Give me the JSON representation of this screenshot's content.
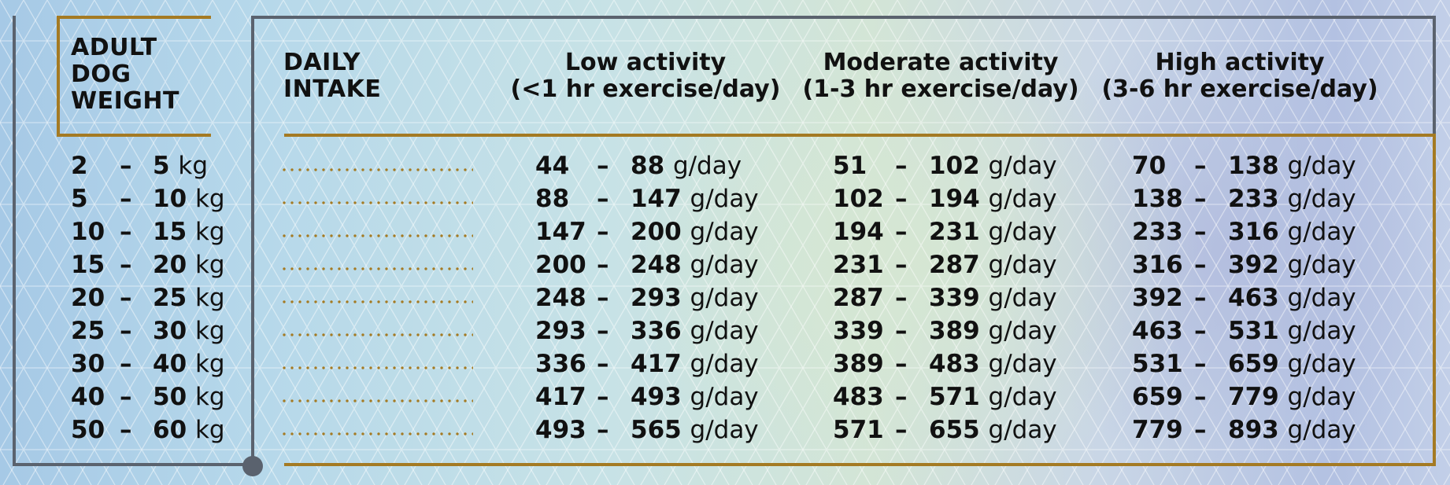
{
  "colors": {
    "frame_gray": "#5a626e",
    "accent_gold": "#a47a23",
    "text": "#111111"
  },
  "headers": {
    "weight": "ADULT\nDOG\nWEIGHT",
    "intake": "DAILY\nINTAKE",
    "low": {
      "title": "Low activity",
      "subtitle": "(<1 hr exercise/day)"
    },
    "moderate": {
      "title": "Moderate activity",
      "subtitle": "(1-3 hr exercise/day)"
    },
    "high": {
      "title": "High activity",
      "subtitle": "(3-6 hr exercise/day)"
    }
  },
  "units": {
    "weight": "kg",
    "intake": "g/day"
  },
  "dash": "–",
  "rows": [
    {
      "weight_min": "2",
      "weight_max": "5",
      "low": [
        "44",
        "88"
      ],
      "moderate": [
        "51",
        "102"
      ],
      "high": [
        "70",
        "138"
      ]
    },
    {
      "weight_min": "5",
      "weight_max": "10",
      "low": [
        "88",
        "147"
      ],
      "moderate": [
        "102",
        "194"
      ],
      "high": [
        "138",
        "233"
      ]
    },
    {
      "weight_min": "10",
      "weight_max": "15",
      "low": [
        "147",
        "200"
      ],
      "moderate": [
        "194",
        "231"
      ],
      "high": [
        "233",
        "316"
      ]
    },
    {
      "weight_min": "15",
      "weight_max": "20",
      "low": [
        "200",
        "248"
      ],
      "moderate": [
        "231",
        "287"
      ],
      "high": [
        "316",
        "392"
      ]
    },
    {
      "weight_min": "20",
      "weight_max": "25",
      "low": [
        "248",
        "293"
      ],
      "moderate": [
        "287",
        "339"
      ],
      "high": [
        "392",
        "463"
      ]
    },
    {
      "weight_min": "25",
      "weight_max": "30",
      "low": [
        "293",
        "336"
      ],
      "moderate": [
        "339",
        "389"
      ],
      "high": [
        "463",
        "531"
      ]
    },
    {
      "weight_min": "30",
      "weight_max": "40",
      "low": [
        "336",
        "417"
      ],
      "moderate": [
        "389",
        "483"
      ],
      "high": [
        "531",
        "659"
      ]
    },
    {
      "weight_min": "40",
      "weight_max": "50",
      "low": [
        "417",
        "493"
      ],
      "moderate": [
        "483",
        "571"
      ],
      "high": [
        "659",
        "779"
      ]
    },
    {
      "weight_min": "50",
      "weight_max": "60",
      "low": [
        "493",
        "565"
      ],
      "moderate": [
        "571",
        "655"
      ],
      "high": [
        "779",
        "893"
      ]
    }
  ]
}
